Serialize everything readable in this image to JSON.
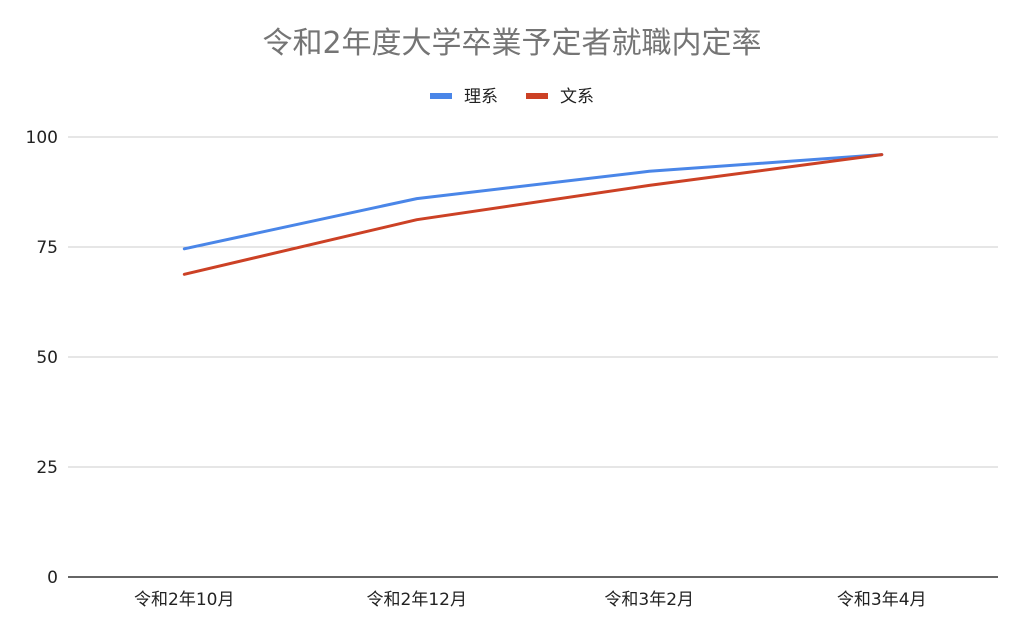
{
  "chart_data": {
    "type": "line",
    "title": "令和2年度大学卒業予定者就職内定率",
    "xlabel": "",
    "ylabel": "",
    "categories": [
      "令和2年10月",
      "令和2年12月",
      "令和3年2月",
      "令和3年4月"
    ],
    "series": [
      {
        "name": "理系",
        "color": "#4a86e8",
        "values": [
          74.6,
          86.0,
          92.2,
          96.0
        ]
      },
      {
        "name": "文系",
        "color": "#cc4125",
        "values": [
          68.8,
          81.2,
          89.0,
          96.0
        ]
      }
    ],
    "ylim": [
      0,
      100
    ],
    "yticks": [
      "0",
      "25",
      "50",
      "75",
      "100"
    ],
    "grid": true,
    "legend_position": "top"
  }
}
